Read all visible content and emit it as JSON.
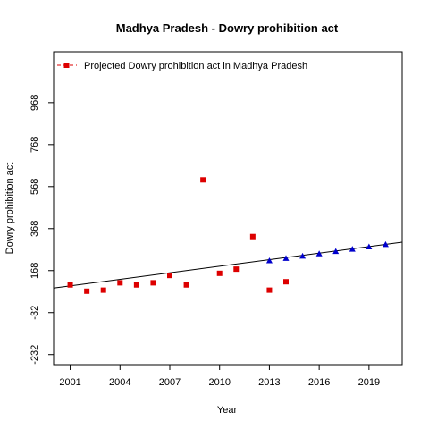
{
  "chart_data": {
    "type": "scatter",
    "title": "Madhya Pradesh  -  Dowry prohibition act",
    "xlabel": "Year",
    "ylabel": "Dowry prohibition act",
    "xlim": [
      2000.0,
      2021.0
    ],
    "ylim": [
      -280,
      1210
    ],
    "x_ticks": [
      2001,
      2004,
      2007,
      2010,
      2013,
      2016,
      2019
    ],
    "y_ticks": [
      -232,
      -32,
      168,
      368,
      568,
      768,
      968
    ],
    "legend": {
      "position": "top-left",
      "label": "Projected  Dowry prohibition act  in  Madhya Pradesh"
    },
    "series": [
      {
        "kind": "observed",
        "color": "#dd0000",
        "marker": "square",
        "x": [
          2001,
          2002,
          2003,
          2004,
          2005,
          2006,
          2007,
          2008,
          2009,
          2010,
          2011,
          2012,
          2013,
          2014
        ],
        "y": [
          100,
          70,
          75,
          110,
          100,
          110,
          145,
          100,
          600,
          155,
          175,
          330,
          75,
          115
        ]
      },
      {
        "kind": "projected",
        "color": "#0000cc",
        "marker": "triangle",
        "x": [
          2013,
          2014,
          2015,
          2016,
          2017,
          2018,
          2019,
          2020
        ],
        "y": [
          216,
          227,
          238,
          249,
          260,
          271,
          282,
          293
        ]
      }
    ],
    "trend_line": {
      "color": "#000000",
      "x": [
        2000.0,
        2021.0
      ],
      "y": [
        85,
        303
      ]
    }
  }
}
